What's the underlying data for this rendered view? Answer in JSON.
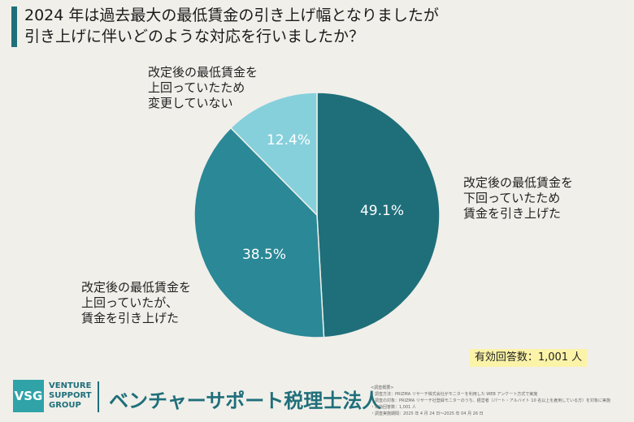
{
  "title": {
    "line1": "2024 年は過去最大の最低賃金の引き上げ幅となりましたが",
    "line2": "引き上げに伴いどのような対応を行いましたか？"
  },
  "chart_data": {
    "type": "pie",
    "slices": [
      {
        "label_lines": [
          "改定後の最低賃金を",
          "下回っていたため",
          "賃金を引き上げた"
        ],
        "value": 49.1,
        "value_label": "49.1%",
        "color": "#1f6f7a"
      },
      {
        "label_lines": [
          "改定後の最低賃金を",
          "上回っていたが、",
          "賃金を引き上げた"
        ],
        "value": 38.5,
        "value_label": "38.5%",
        "color": "#2b8896"
      },
      {
        "label_lines": [
          "改定後の最低賃金を",
          "上回っていたため",
          "変更していない"
        ],
        "value": 12.4,
        "value_label": "12.4%",
        "color": "#86d0dc"
      }
    ]
  },
  "badge": "有効回答数：1,001 人",
  "footer": {
    "logo_mark": "VSG",
    "logo_lines": [
      "VENTURE",
      "SUPPORT",
      "GROUP"
    ],
    "company": "ベンチャーサポート税理士法人",
    "notes": [
      "<調査概要>",
      "・調査方法：PRIZMA リサーチ株式会社がモニターを利用した WEB アンケート方式で実施",
      "・調査の対象：PRIZMA リサーチ社登録モニターのうち、経営者（パート・アルバイト 10 名以上を雇用している方）を対象に実施",
      "・有効回答数：1,001 人",
      "・調査実施期間：2025 年 4 月 24 日～2025 年 04 月 26 日"
    ]
  }
}
